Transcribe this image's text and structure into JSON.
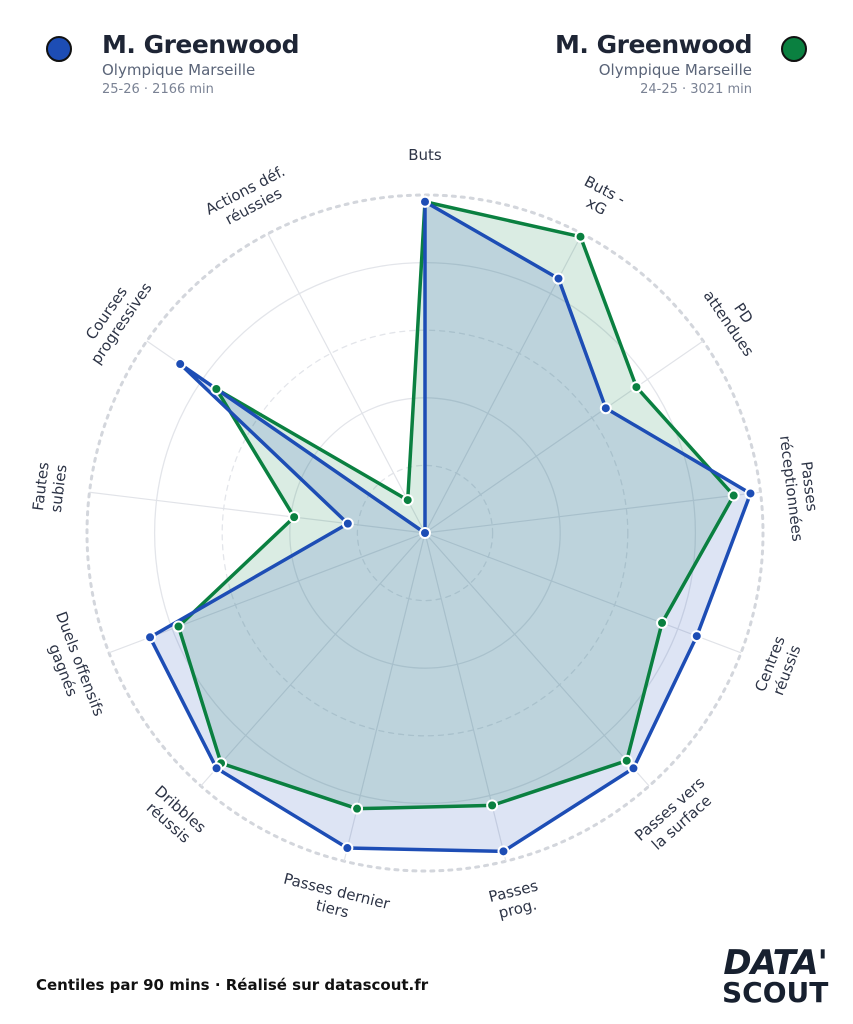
{
  "players": [
    {
      "name": "M. Greenwood",
      "club": "Olympique Marseille",
      "meta": "25-26 · 2166 min",
      "color": "#1d4db5"
    },
    {
      "name": "M. Greenwood",
      "club": "Olympique Marseille",
      "meta": "24-25 · 3021 min",
      "color": "#0a8040"
    }
  ],
  "footer": "Centiles par 90 mins · Réalisé sur datascout.fr",
  "logo": {
    "line1": "DATA'",
    "line2": "SCOUT"
  },
  "chart_data": {
    "type": "radar",
    "range": [
      0,
      100
    ],
    "rings": [
      20,
      40,
      60,
      80,
      100
    ],
    "categories": [
      [
        "Buts"
      ],
      [
        "Buts -",
        "xG"
      ],
      [
        "PD",
        "attendues"
      ],
      [
        "Passes",
        "réceptionnées"
      ],
      [
        "Centres",
        "réussis"
      ],
      [
        "Passes vers",
        "la surface"
      ],
      [
        "Passes",
        "prog."
      ],
      [
        "Passes dernier",
        "tiers"
      ],
      [
        "Dribbles",
        "réussis"
      ],
      [
        "Duels offensifs",
        "gagnés"
      ],
      [
        "Fautes",
        "subies"
      ],
      [
        "Courses",
        "progressives"
      ],
      [
        "Actions déf.",
        "réussies"
      ]
    ],
    "series": [
      {
        "name": "M. Greenwood 24-25",
        "color": "#0a8040",
        "values": [
          98,
          99,
          76,
          92,
          75,
          90,
          83,
          84,
          91,
          78,
          39,
          75,
          11
        ]
      },
      {
        "name": "M. Greenwood 25-26",
        "color": "#1d4db5",
        "values": [
          98,
          85,
          65,
          97,
          86,
          93,
          97,
          96,
          93,
          87,
          23,
          88,
          0
        ]
      }
    ]
  }
}
